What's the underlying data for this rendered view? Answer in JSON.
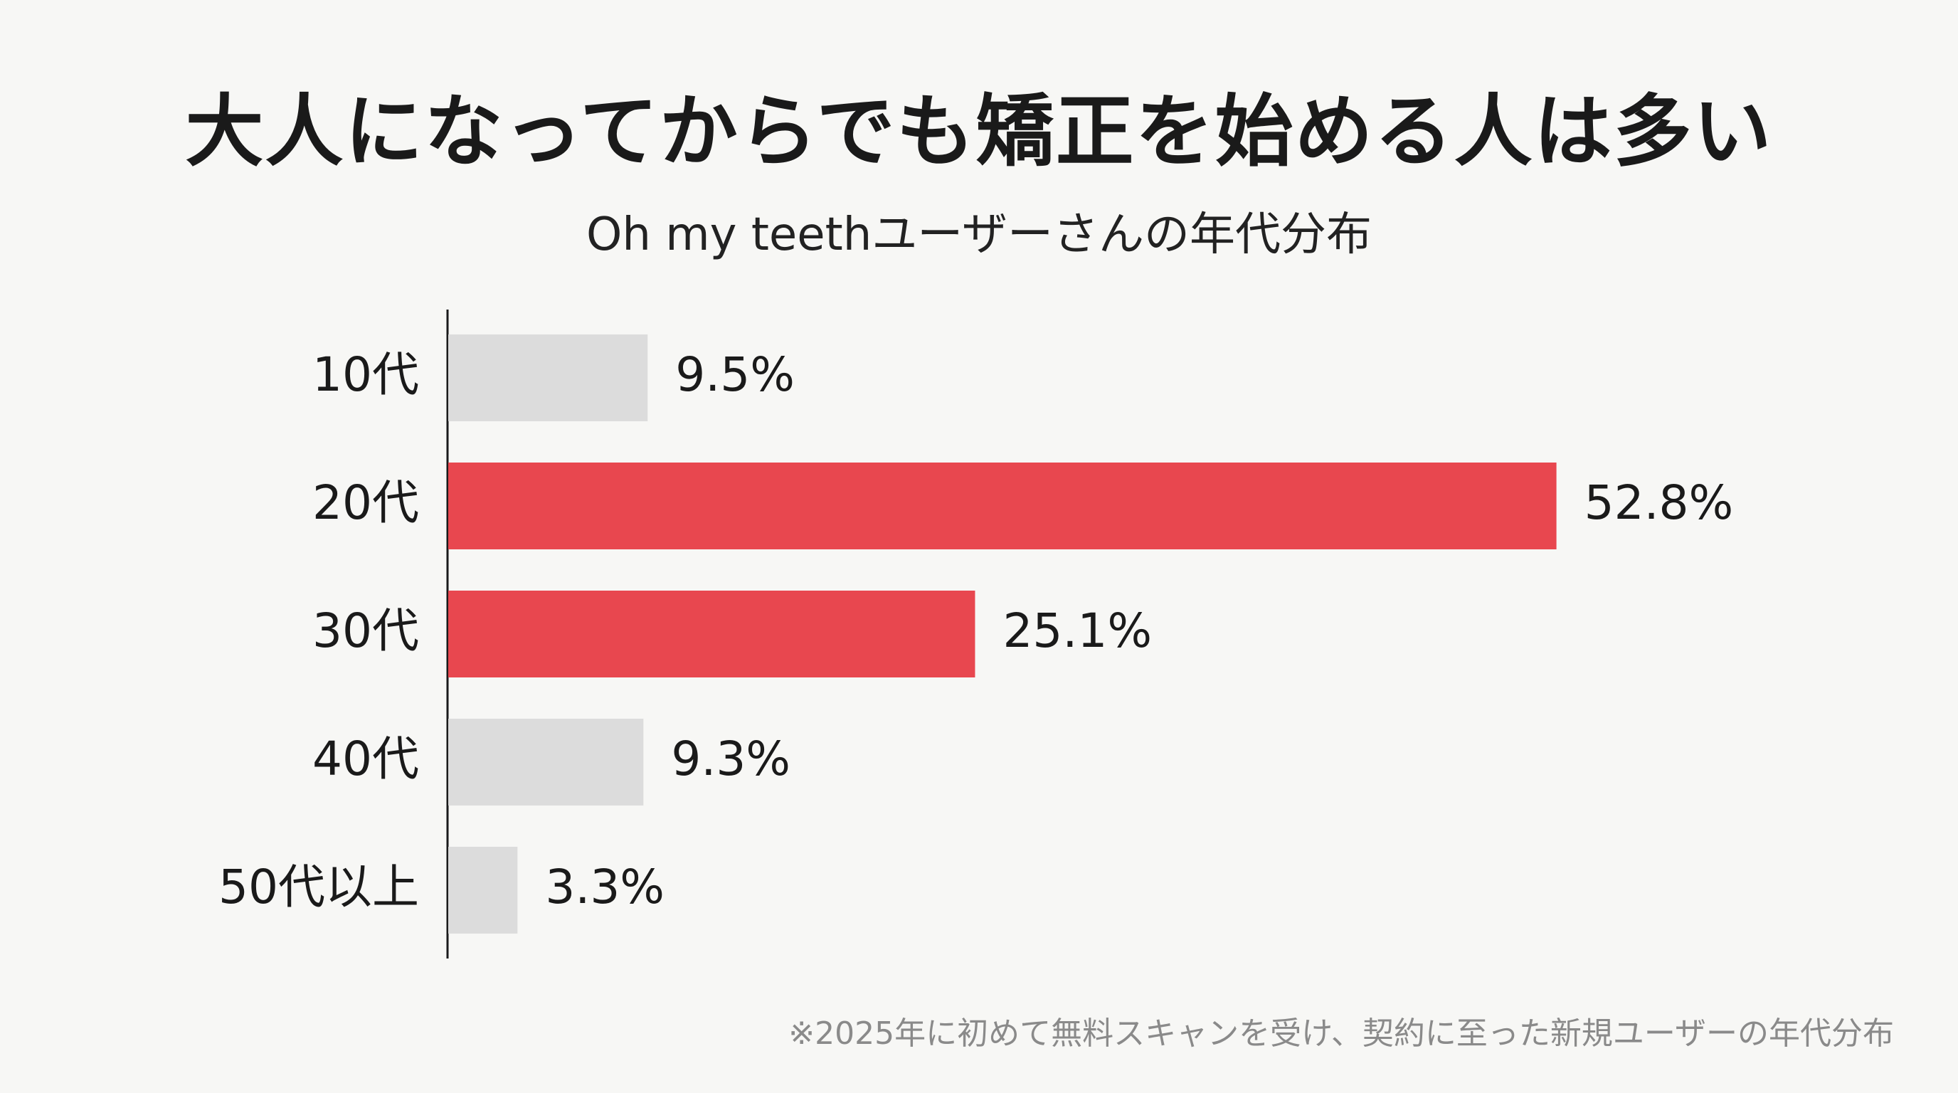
{
  "chart_data": {
    "type": "bar",
    "orientation": "horizontal",
    "title": "大人になってからでも矯正を始める人は多い",
    "subtitle": "Oh my teethユーザーさんの年代分布",
    "footnote": "※2025年に初めて無料スキャンを受け、契約に至った新規ユーザーの年代分布",
    "categories": [
      "10代",
      "20代",
      "30代",
      "40代",
      "50代以上"
    ],
    "values": [
      9.5,
      52.8,
      25.1,
      9.3,
      3.3
    ],
    "value_labels": [
      "9.5%",
      "52.8%",
      "25.1%",
      "9.3%",
      "3.3%"
    ],
    "highlight": [
      false,
      true,
      true,
      false,
      false
    ],
    "colors": {
      "highlight": "#e8474f",
      "normal": "#dcdcdc",
      "axis": "#1a1a1a",
      "label": "#1a1a1a"
    },
    "xlim": [
      0,
      60
    ],
    "grid": false,
    "legend": "none"
  }
}
